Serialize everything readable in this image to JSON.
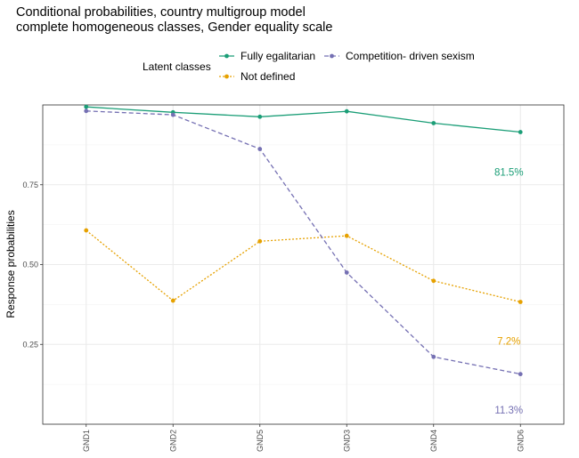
{
  "chart_data": {
    "type": "line",
    "title": "Conditional probabilities, country multigroup model",
    "subtitle": "complete homogeneous classes, Gender equality scale",
    "xlabel": "",
    "ylabel": "Response probabilities",
    "categories": [
      "GND1",
      "GND2",
      "GND5",
      "GND3",
      "GND4",
      "GND6"
    ],
    "ylim": [
      0.0,
      1.0
    ],
    "yticks": [
      0.25,
      0.5,
      0.75
    ],
    "ytick_labels": [
      "0.25",
      "0.50",
      "0.75"
    ],
    "grid": true,
    "legend": {
      "title": "Latent classes",
      "position": "top"
    },
    "series": [
      {
        "name": "Fully egalitarian",
        "color": "#1b9e77",
        "dash": "solid",
        "values": [
          0.994,
          0.977,
          0.963,
          0.98,
          0.943,
          0.915
        ]
      },
      {
        "name": "Not defined",
        "color": "#e6a100",
        "dash": "dotted",
        "values": [
          0.607,
          0.387,
          0.573,
          0.59,
          0.449,
          0.383
        ]
      },
      {
        "name": "Competition- driven sexism",
        "color": "#7570b3",
        "dash": "dashed",
        "values": [
          0.981,
          0.969,
          0.862,
          0.475,
          0.211,
          0.157
        ]
      }
    ],
    "annotations": [
      {
        "text": "81.5%",
        "series": "Fully egalitarian",
        "x": "GND6",
        "y": 0.79,
        "color": "#1b9e77"
      },
      {
        "text": "7.2%",
        "series": "Not defined",
        "x": "GND6",
        "y": 0.26,
        "color": "#e6a100"
      },
      {
        "text": "11.3%",
        "series": "Competition- driven sexism",
        "x": "GND6",
        "y": 0.045,
        "color": "#7570b3"
      }
    ]
  }
}
